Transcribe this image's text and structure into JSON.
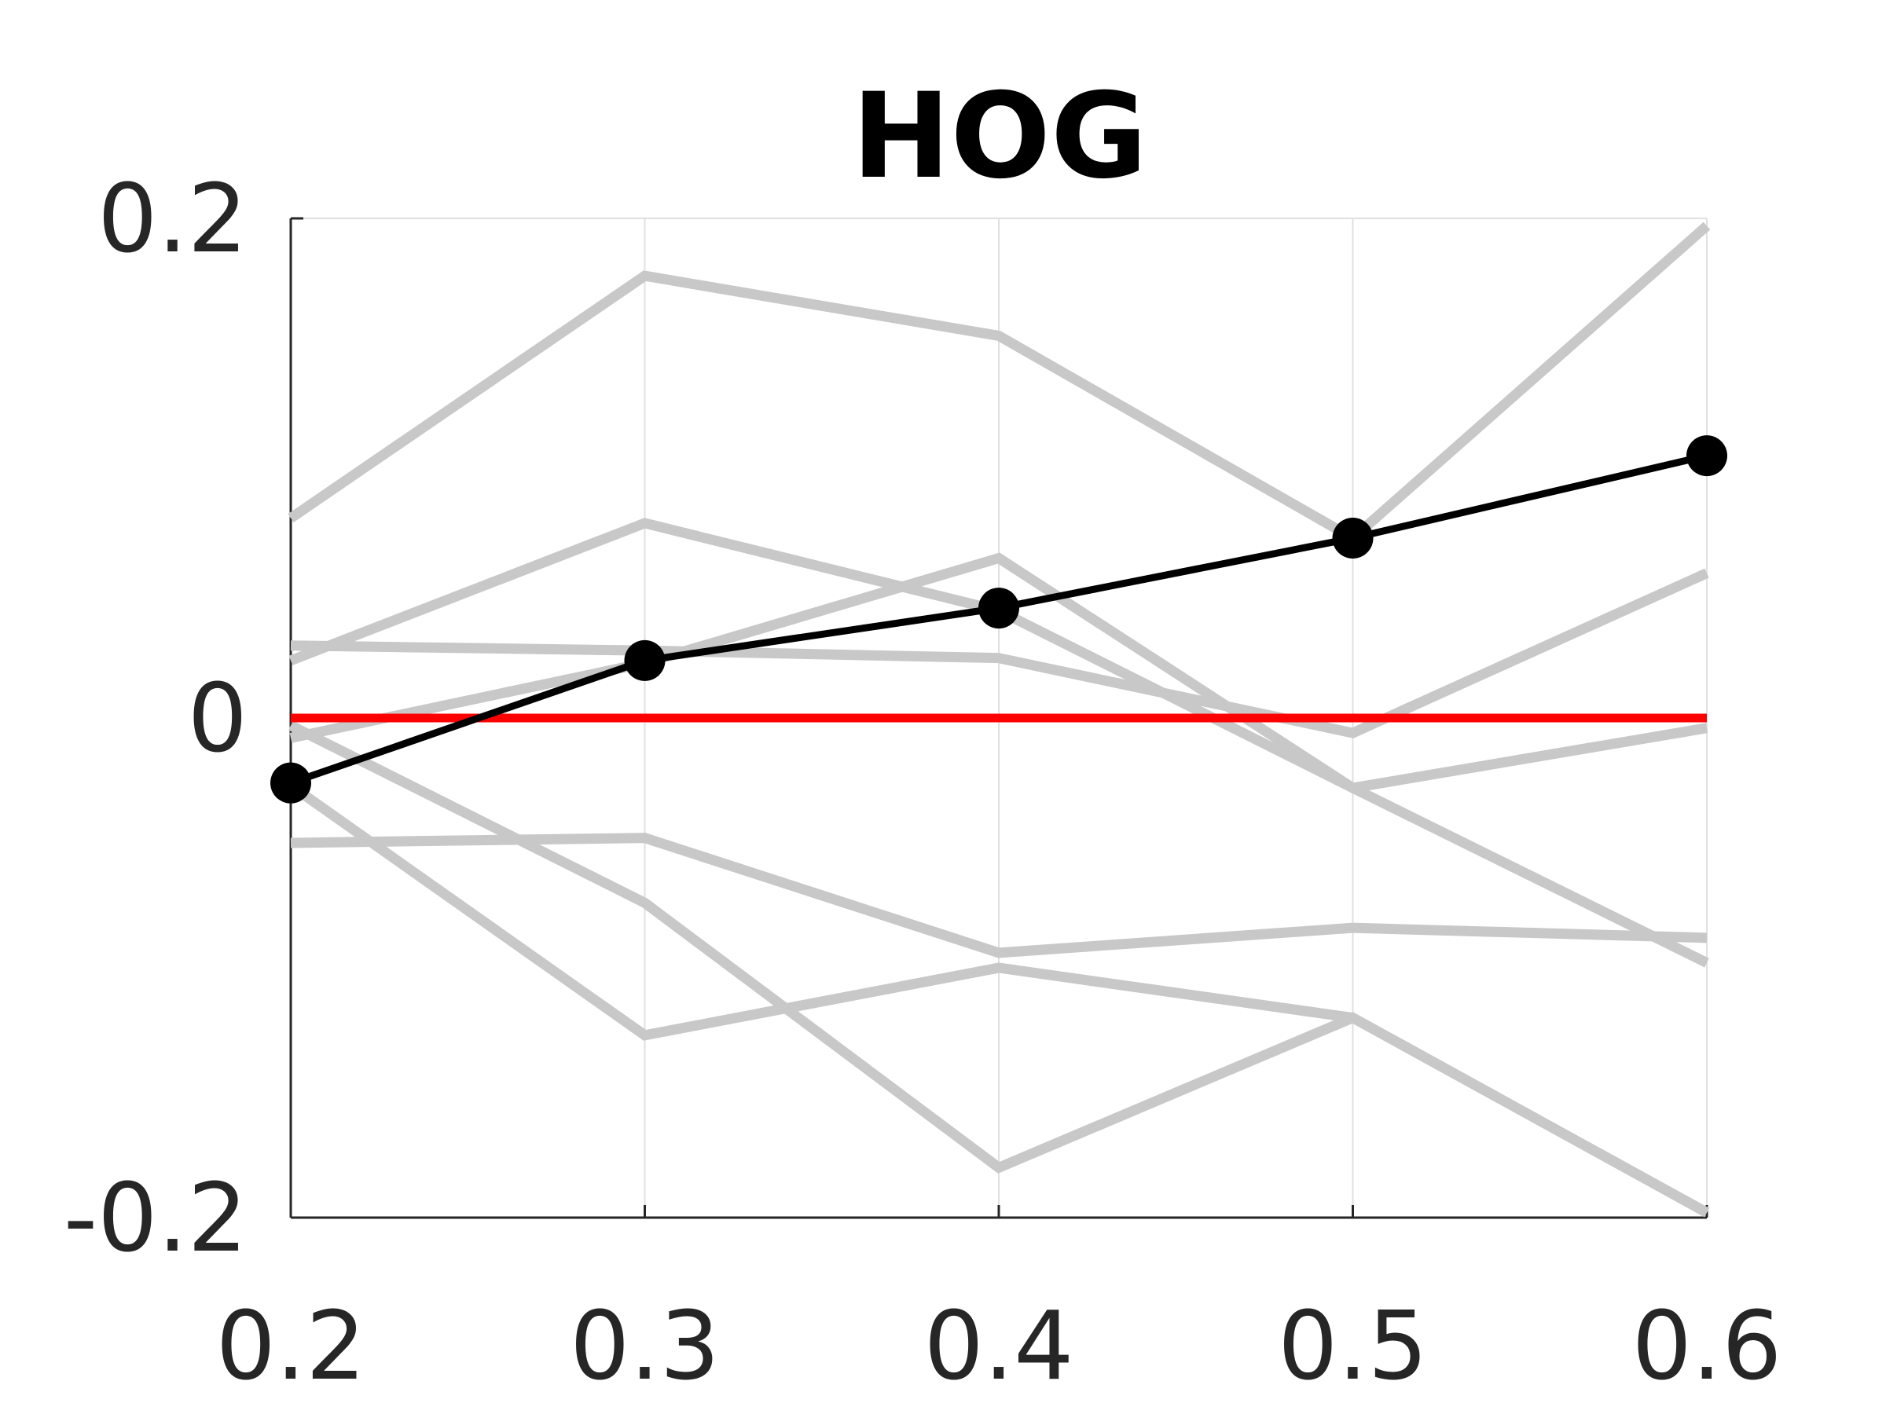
{
  "chart_data": {
    "type": "line",
    "title": "HOG",
    "xlabel": "",
    "ylabel": "",
    "x": [
      0.2,
      0.3,
      0.4,
      0.5,
      0.6
    ],
    "xticks": [
      "0.2",
      "0.3",
      "0.4",
      "0.5",
      "0.6"
    ],
    "yticks": [
      "-0.2",
      "0",
      "0.2"
    ],
    "ytick_values": [
      -0.2,
      0,
      0.2
    ],
    "xlim": [
      0.2,
      0.6
    ],
    "ylim": [
      -0.2,
      0.2
    ],
    "grid": true,
    "reference_line": {
      "y": 0,
      "color": "#ff0000"
    },
    "colors": {
      "background_series": "#c8c8c8",
      "main_series": "#000000",
      "reference": "#ff0000",
      "grid": "#e0e0e0",
      "axis": "#262626"
    },
    "series": [
      {
        "values": [
          -0.026,
          0.023,
          0.044,
          0.072,
          0.105
        ],
        "style": "main",
        "markers": true
      },
      {
        "values": [
          0.08,
          0.177,
          0.153,
          0.072,
          0.197
        ],
        "style": "background"
      },
      {
        "values": [
          0.023,
          0.078,
          0.043,
          -0.028,
          -0.098
        ],
        "style": "background"
      },
      {
        "values": [
          0.029,
          0.027,
          0.024,
          -0.006,
          0.058
        ],
        "style": "background"
      },
      {
        "values": [
          -0.008,
          0.022,
          0.064,
          -0.028,
          -0.004
        ],
        "style": "background"
      },
      {
        "values": [
          -0.05,
          -0.048,
          -0.094,
          -0.084,
          -0.088
        ],
        "style": "background"
      },
      {
        "values": [
          -0.027,
          -0.127,
          -0.1,
          -0.12,
          -0.198
        ],
        "style": "background"
      },
      {
        "values": [
          -0.003,
          -0.074,
          -0.18,
          -0.12,
          -0.198
        ],
        "style": "background"
      }
    ]
  }
}
